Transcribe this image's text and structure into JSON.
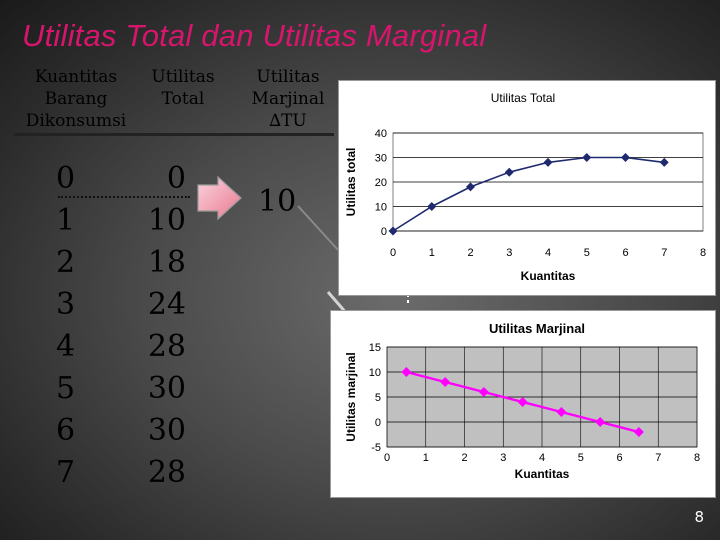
{
  "slide_title": "Utilitas Total dan Utilitas Marginal",
  "headers": {
    "qty": [
      "Kuantitas",
      "Barang",
      "Dikonsumsi"
    ],
    "tu": [
      "Utilitas",
      "Total"
    ],
    "mu": [
      "Utilitas",
      "Marjinal",
      "∆TU"
    ]
  },
  "table": {
    "quantities": [
      "0",
      "1",
      "2",
      "3",
      "4",
      "5",
      "6",
      "7"
    ],
    "totals": [
      "0",
      "10",
      "18",
      "24",
      "28",
      "30",
      "30",
      "28"
    ],
    "marginal_shown": "10"
  },
  "page_number": "8",
  "colors": {
    "title": "#d8156c",
    "tu_series": "#1f2a6e",
    "mu_series": "#ff00ff"
  },
  "chart_data": [
    {
      "type": "line",
      "title": "Utilitas Total",
      "xlabel": "Kuantitas",
      "ylabel": "Utilitas total",
      "x": [
        0,
        1,
        2,
        3,
        4,
        5,
        6,
        7
      ],
      "series": [
        {
          "values": [
            0,
            10,
            18,
            24,
            28,
            30,
            30,
            28
          ]
        }
      ],
      "xlim": [
        0,
        8
      ],
      "ylim": [
        0,
        40
      ],
      "xticks": [
        "0",
        "1",
        "2",
        "3",
        "4",
        "5",
        "6",
        "7",
        "8"
      ],
      "yticks": [
        "0",
        "10",
        "20",
        "30",
        "40"
      ],
      "grid": true,
      "legend": "none"
    },
    {
      "type": "line",
      "title": "Utilitas Marjinal",
      "xlabel": "Kuantitas",
      "ylabel": "Utilitas marjinal",
      "x": [
        0.5,
        1.5,
        2.5,
        3.5,
        4.5,
        5.5,
        6.5
      ],
      "series": [
        {
          "values": [
            10,
            8,
            6,
            4,
            2,
            0,
            -2
          ]
        }
      ],
      "xlim": [
        0,
        8
      ],
      "ylim": [
        -5,
        15
      ],
      "xticks": [
        "0",
        "1",
        "2",
        "3",
        "4",
        "5",
        "6",
        "7",
        "8"
      ],
      "yticks": [
        "-5",
        "0",
        "5",
        "10",
        "15"
      ],
      "grid": true,
      "legend": "none"
    }
  ]
}
